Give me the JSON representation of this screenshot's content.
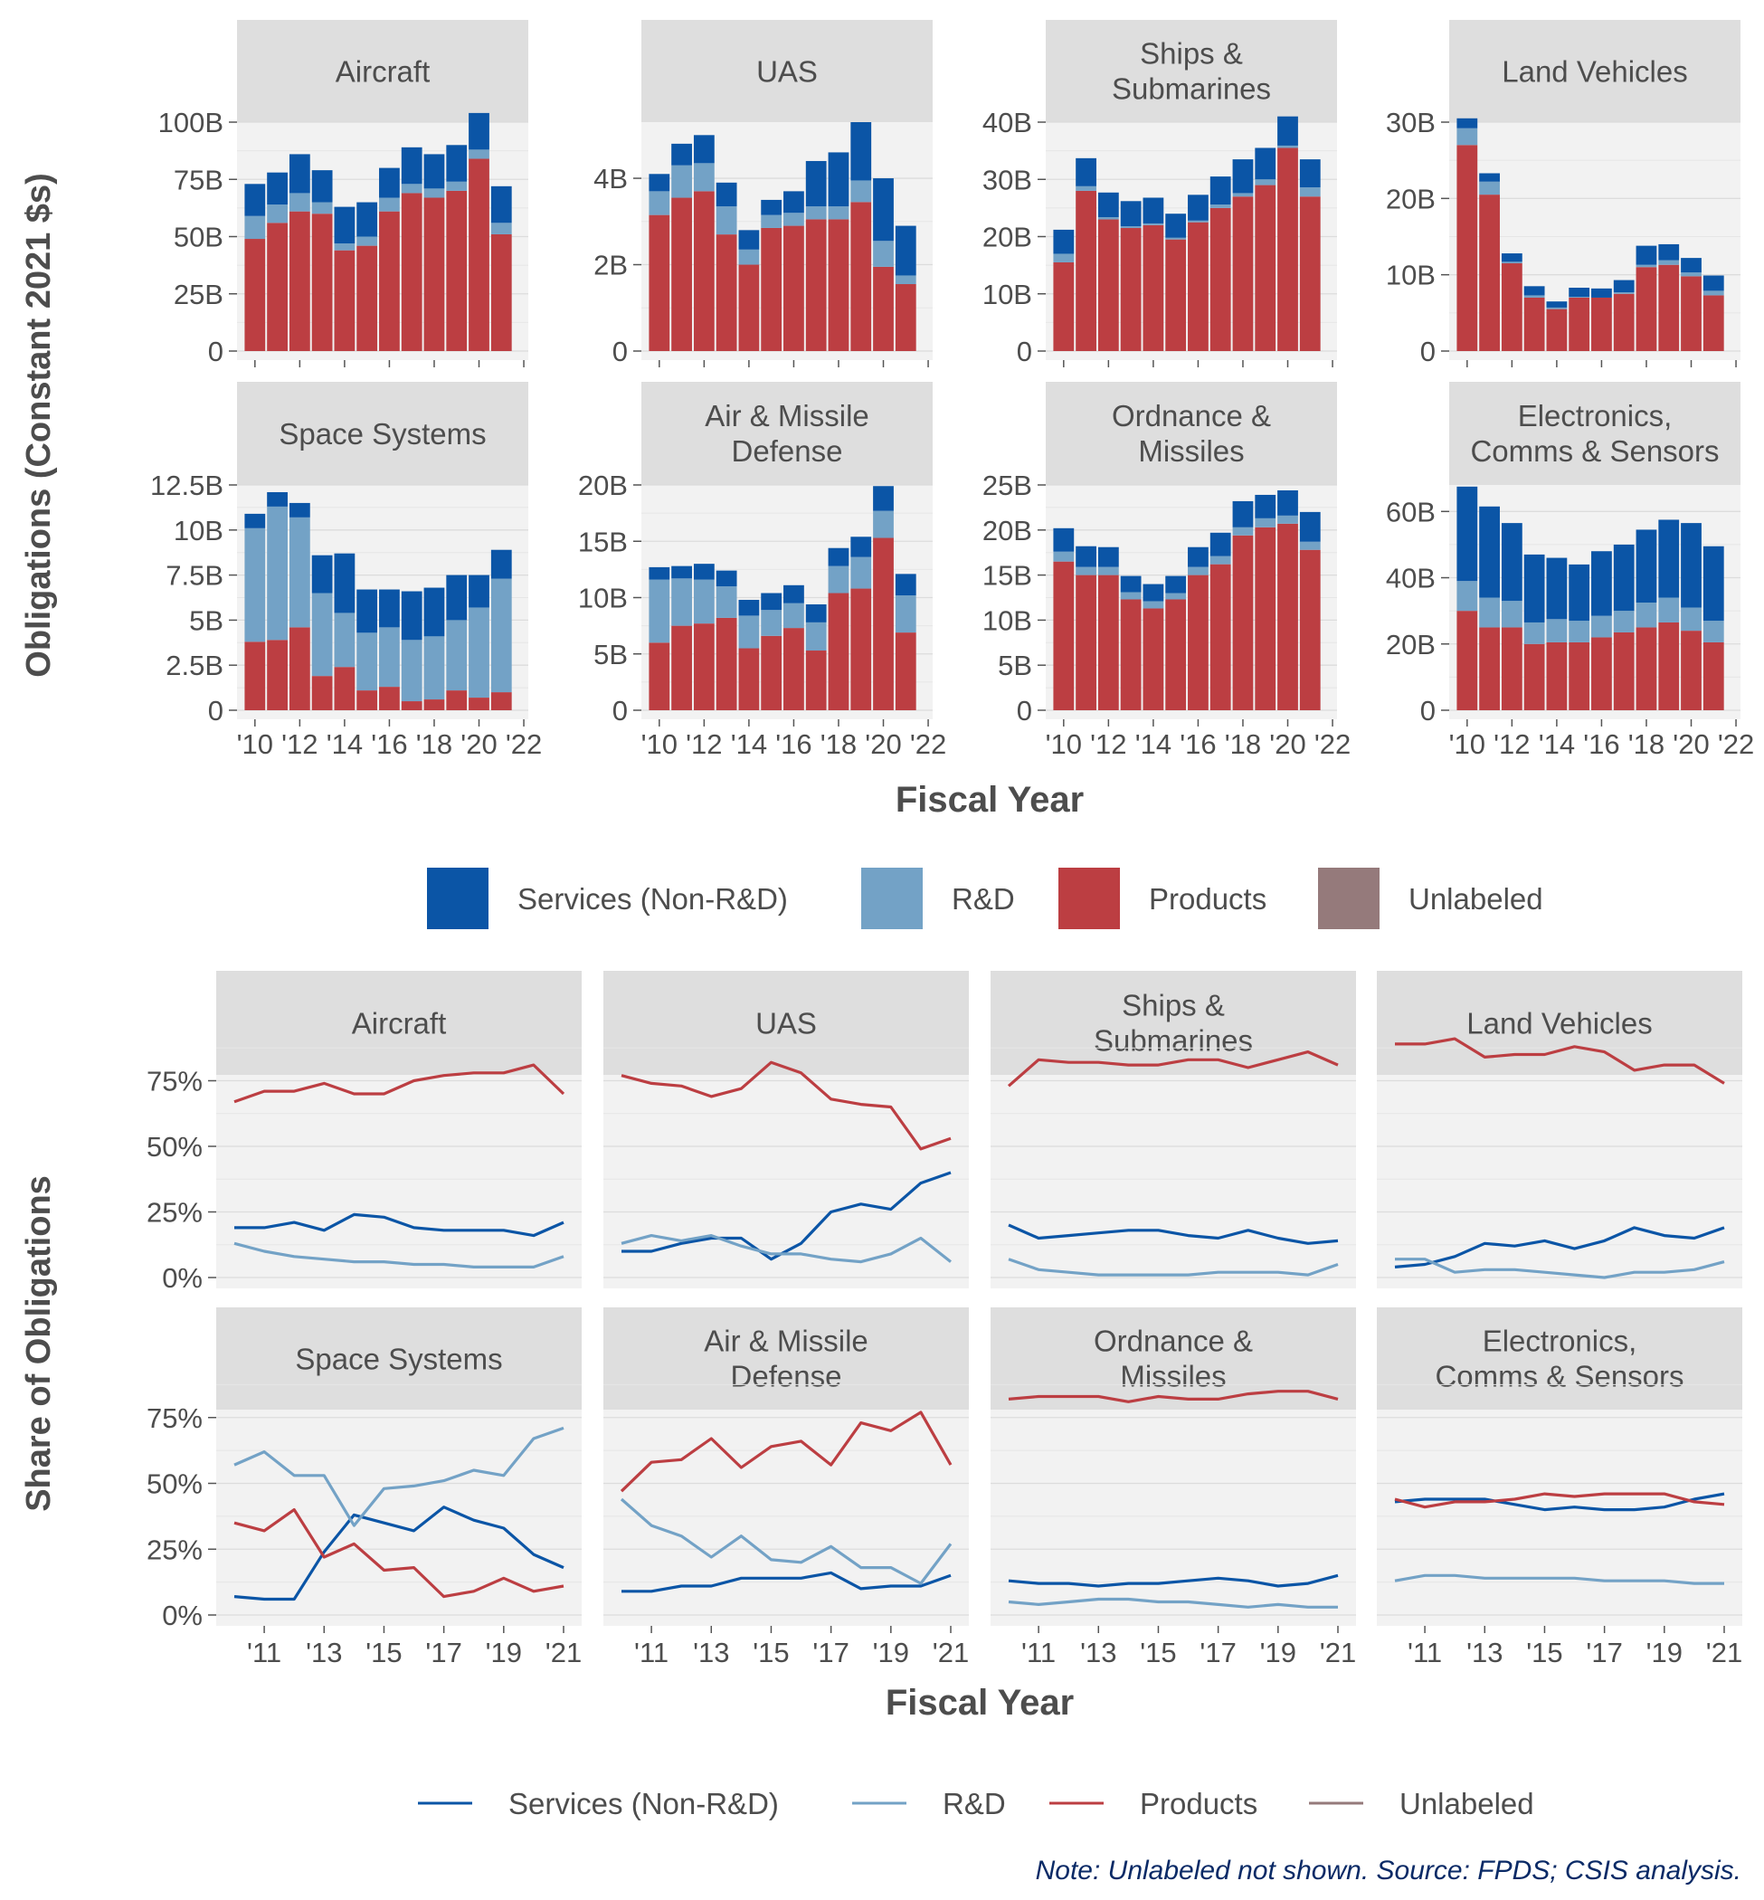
{
  "colors": {
    "services": "#0B55A6",
    "rnd": "#73A2C6",
    "products": "#BC3E42",
    "unlabeled": "#957A7B",
    "strip_bg": "#DEDEDE",
    "panel_bg": "#F2F2F2",
    "grid": "#D9D9D9",
    "text": "#4D4D4D",
    "note": "#0A2A66"
  },
  "top_panel": {
    "ylabel": "Obligations (Constant 2021 $s)",
    "xlabel": "Fiscal Year",
    "x_ticks": [
      "'10",
      "'12",
      "'14",
      "'16",
      "'18",
      "'20",
      "'22"
    ]
  },
  "bottom_panel": {
    "ylabel": "Share of Obligations",
    "xlabel": "Fiscal Year",
    "x_ticks": [
      "'11",
      "'13",
      "'15",
      "'17",
      "'19",
      "'21"
    ],
    "y_ticks": [
      "0%",
      "25%",
      "50%",
      "75%"
    ]
  },
  "legend_top": [
    "Services (Non-R&D)",
    "R&D",
    "Products",
    "Unlabeled"
  ],
  "legend_bottom": [
    "Services (Non-R&D)",
    "R&D",
    "Products",
    "Unlabeled"
  ],
  "note": "Note: Unlabeled not shown. Source: FPDS; CSIS analysis.",
  "chart_data": [
    {
      "type": "bar",
      "stacked": true,
      "unit": "billions of constant 2021 dollars",
      "categories": [
        2010,
        2011,
        2012,
        2013,
        2014,
        2015,
        2016,
        2017,
        2018,
        2019,
        2020,
        2021
      ],
      "series_order": [
        "Products",
        "R&D",
        "Services (Non-R&D)"
      ],
      "facets": [
        {
          "title": "Aircraft",
          "y_ticks": [
            0,
            25,
            50,
            75,
            100
          ],
          "y_tick_labels": [
            "0",
            "25B",
            "50B",
            "75B",
            "100B"
          ],
          "ylim": [
            0,
            100
          ],
          "products": [
            49,
            56,
            61,
            60,
            44,
            46,
            61,
            69,
            67,
            70,
            84,
            51
          ],
          "rnd": [
            10,
            8,
            8,
            5,
            3,
            4,
            6,
            4,
            4,
            4,
            4,
            5
          ],
          "services": [
            14,
            14,
            17,
            14,
            16,
            15,
            13,
            16,
            15,
            16,
            16,
            16
          ]
        },
        {
          "title": "UAS",
          "y_ticks": [
            0,
            2,
            4
          ],
          "y_tick_labels": [
            "0",
            "2B",
            "4B"
          ],
          "ylim": [
            0,
            5.3
          ],
          "products": [
            3.15,
            3.55,
            3.7,
            2.7,
            2.0,
            2.85,
            2.9,
            3.05,
            3.05,
            3.45,
            1.95,
            1.55
          ],
          "rnd": [
            0.55,
            0.75,
            0.65,
            0.65,
            0.35,
            0.3,
            0.3,
            0.3,
            0.3,
            0.5,
            0.6,
            0.2
          ],
          "services": [
            0.4,
            0.5,
            0.65,
            0.55,
            0.45,
            0.35,
            0.5,
            1.05,
            1.25,
            1.35,
            1.45,
            1.15
          ]
        },
        {
          "title": "Ships & Submarines",
          "y_ticks": [
            0,
            10,
            20,
            30,
            40
          ],
          "y_tick_labels": [
            "0",
            "10B",
            "20B",
            "30B",
            "40B"
          ],
          "ylim": [
            0,
            40
          ],
          "products": [
            15.5,
            28,
            23,
            21.5,
            22,
            19.5,
            22.5,
            25,
            27,
            29,
            35.5,
            27
          ],
          "rnd": [
            1.5,
            0.8,
            0.4,
            0.3,
            0.3,
            0.3,
            0.3,
            0.6,
            0.6,
            1,
            0.4,
            1.6
          ],
          "services": [
            4.2,
            4.9,
            4.3,
            4.4,
            4.5,
            4.2,
            4.5,
            4.9,
            5.9,
            5.5,
            5.1,
            4.9
          ]
        },
        {
          "title": "Land Vehicles",
          "y_ticks": [
            0,
            10,
            20,
            30
          ],
          "y_tick_labels": [
            "0",
            "10B",
            "20B",
            "30B"
          ],
          "ylim": [
            0,
            30
          ],
          "products": [
            27,
            20.5,
            11.5,
            7,
            5.5,
            7,
            7,
            7.5,
            11,
            11.3,
            9.8,
            7.3
          ],
          "rnd": [
            2.2,
            1.7,
            0.2,
            0.3,
            0.2,
            0.1,
            0,
            0.2,
            0.3,
            0.6,
            0.5,
            0.6
          ],
          "services": [
            1.3,
            1.1,
            1.1,
            1.2,
            0.8,
            1.2,
            1.2,
            1.6,
            2.5,
            2.1,
            1.9,
            2.0
          ]
        },
        {
          "title": "Space Systems",
          "y_ticks": [
            0,
            2.5,
            5,
            7.5,
            10,
            12.5
          ],
          "y_tick_labels": [
            "0",
            "2.5B",
            "5B",
            "7.5B",
            "10B",
            "12.5B"
          ],
          "ylim": [
            0,
            12.5
          ],
          "products": [
            3.8,
            3.9,
            4.6,
            1.9,
            2.4,
            1.1,
            1.3,
            0.5,
            0.6,
            1.1,
            0.7,
            1.0
          ],
          "rnd": [
            6.3,
            7.4,
            6.1,
            4.6,
            3.0,
            3.2,
            3.3,
            3.4,
            3.5,
            3.9,
            5.0,
            6.3
          ],
          "services": [
            0.8,
            0.8,
            0.8,
            2.1,
            3.3,
            2.4,
            2.1,
            2.7,
            2.7,
            2.5,
            1.8,
            1.6
          ]
        },
        {
          "title": "Air & Missile Defense",
          "y_ticks": [
            0,
            5,
            10,
            15,
            20
          ],
          "y_tick_labels": [
            "0",
            "5B",
            "10B",
            "15B",
            "20B"
          ],
          "ylim": [
            0,
            20
          ],
          "products": [
            6.0,
            7.5,
            7.7,
            8.2,
            5.5,
            6.6,
            7.3,
            5.3,
            10.4,
            10.8,
            15.3,
            6.9
          ],
          "rnd": [
            5.6,
            4.2,
            3.9,
            2.8,
            2.9,
            2.3,
            2.2,
            2.5,
            2.4,
            2.8,
            2.4,
            3.3
          ],
          "services": [
            1.1,
            1.1,
            1.4,
            1.4,
            1.4,
            1.5,
            1.6,
            1.6,
            1.6,
            1.8,
            2.2,
            1.9
          ]
        },
        {
          "title": "Ordnance & Missiles",
          "y_ticks": [
            0,
            5,
            10,
            15,
            20,
            25
          ],
          "y_tick_labels": [
            "0",
            "5B",
            "10B",
            "15B",
            "20B",
            "25B"
          ],
          "ylim": [
            0,
            25
          ],
          "products": [
            16.5,
            15,
            15,
            12.3,
            11.3,
            12.3,
            15.0,
            16.2,
            19.4,
            20.3,
            20.7,
            17.8
          ],
          "rnd": [
            1.1,
            0.9,
            0.9,
            0.8,
            0.8,
            0.7,
            0.9,
            0.9,
            0.9,
            1.0,
            0.9,
            0.9
          ],
          "services": [
            2.6,
            2.3,
            2.2,
            1.8,
            1.9,
            1.9,
            2.2,
            2.6,
            2.9,
            2.6,
            2.8,
            3.3
          ]
        },
        {
          "title": "Electronics, Comms & Sensors",
          "y_ticks": [
            0,
            20,
            40,
            60
          ],
          "y_tick_labels": [
            "0",
            "20B",
            "40B",
            "60B"
          ],
          "ylim": [
            0,
            68
          ],
          "products": [
            30,
            25,
            25,
            20,
            20.5,
            20.5,
            22,
            23.5,
            25,
            26.5,
            24,
            20.5
          ],
          "rnd": [
            9,
            9,
            8,
            6.5,
            7,
            6.5,
            6.5,
            6.5,
            7.5,
            7.5,
            7,
            6.5
          ],
          "services": [
            28.5,
            27.5,
            23.5,
            20.5,
            18.5,
            17,
            19.5,
            20,
            22,
            23.5,
            25.5,
            22.5
          ]
        }
      ]
    },
    {
      "type": "line",
      "unit": "share of obligations (%)",
      "x": [
        2010,
        2011,
        2012,
        2013,
        2014,
        2015,
        2016,
        2017,
        2018,
        2019,
        2020,
        2021
      ],
      "ylim": [
        0,
        100
      ],
      "series_order": [
        "Services (Non-R&D)",
        "R&D",
        "Products"
      ],
      "facets": [
        {
          "title": "Aircraft",
          "services": [
            19,
            19,
            21,
            18,
            24,
            23,
            19,
            18,
            18,
            18,
            16,
            21
          ],
          "rnd": [
            13,
            10,
            8,
            7,
            6,
            6,
            5,
            5,
            4,
            4,
            4,
            8
          ],
          "products": [
            67,
            71,
            71,
            74,
            70,
            70,
            75,
            77,
            78,
            78,
            81,
            70
          ]
        },
        {
          "title": "UAS",
          "services": [
            10,
            10,
            13,
            15,
            15,
            7,
            13,
            25,
            28,
            26,
            36,
            40
          ],
          "rnd": [
            13,
            16,
            14,
            16,
            12,
            9,
            9,
            7,
            6,
            9,
            15,
            6
          ],
          "products": [
            77,
            74,
            73,
            69,
            72,
            82,
            78,
            68,
            66,
            65,
            49,
            53
          ]
        },
        {
          "title": "Ships & Submarines",
          "services": [
            20,
            15,
            16,
            17,
            18,
            18,
            16,
            15,
            18,
            15,
            13,
            14
          ],
          "rnd": [
            7,
            3,
            2,
            1,
            1,
            1,
            1,
            2,
            2,
            2,
            1,
            5
          ],
          "products": [
            73,
            83,
            82,
            82,
            81,
            81,
            83,
            83,
            80,
            83,
            86,
            81
          ]
        },
        {
          "title": "Land Vehicles",
          "services": [
            4,
            5,
            8,
            13,
            12,
            14,
            11,
            14,
            19,
            16,
            15,
            19
          ],
          "rnd": [
            7,
            7,
            2,
            3,
            3,
            2,
            1,
            0,
            2,
            2,
            3,
            6
          ],
          "products": [
            89,
            89,
            91,
            84,
            85,
            85,
            88,
            86,
            79,
            81,
            81,
            74
          ]
        },
        {
          "title": "Space Systems",
          "services": [
            7,
            6,
            6,
            24,
            38,
            35,
            32,
            41,
            36,
            33,
            23,
            18
          ],
          "rnd": [
            57,
            62,
            53,
            53,
            34,
            48,
            49,
            51,
            55,
            53,
            67,
            71
          ],
          "products": [
            35,
            32,
            40,
            22,
            27,
            17,
            18,
            7,
            9,
            14,
            9,
            11
          ]
        },
        {
          "title": "Air & Missile Defense",
          "services": [
            9,
            9,
            11,
            11,
            14,
            14,
            14,
            16,
            10,
            11,
            11,
            15
          ],
          "rnd": [
            44,
            34,
            30,
            22,
            30,
            21,
            20,
            26,
            18,
            18,
            12,
            27
          ],
          "products": [
            47,
            58,
            59,
            67,
            56,
            64,
            66,
            57,
            73,
            70,
            77,
            57
          ]
        },
        {
          "title": "Ordnance & Missiles",
          "services": [
            13,
            12,
            12,
            11,
            12,
            12,
            13,
            14,
            13,
            11,
            12,
            15
          ],
          "rnd": [
            5,
            4,
            5,
            6,
            6,
            5,
            5,
            4,
            3,
            4,
            3,
            3
          ],
          "products": [
            82,
            83,
            83,
            83,
            81,
            83,
            82,
            82,
            84,
            85,
            85,
            82
          ]
        },
        {
          "title": "Electronics, Comms & Sensors",
          "services": [
            43,
            44,
            44,
            44,
            42,
            40,
            41,
            40,
            40,
            41,
            44,
            46
          ],
          "rnd": [
            13,
            15,
            15,
            14,
            14,
            14,
            14,
            13,
            13,
            13,
            12,
            12
          ],
          "products": [
            44,
            41,
            43,
            43,
            44,
            46,
            45,
            46,
            46,
            46,
            43,
            42
          ]
        }
      ]
    }
  ]
}
